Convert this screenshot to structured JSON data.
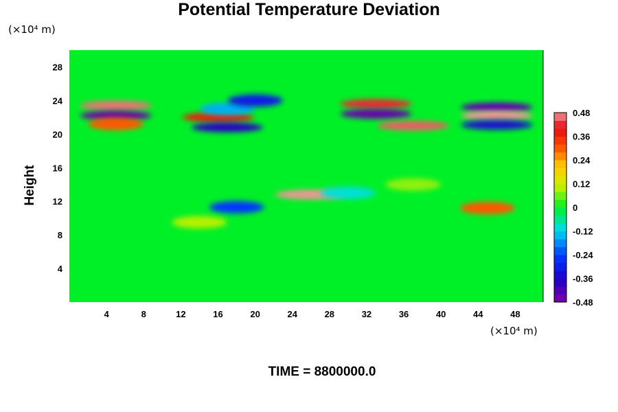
{
  "chart_data": {
    "type": "heatmap",
    "title": "Potential Temperature Deviation",
    "ylabel": "Height",
    "y_unit_label": "(×10⁴ m)",
    "x_unit_label": "(×10⁴ m)",
    "footer": "TIME = 8800000.0",
    "xlim": [
      0,
      51
    ],
    "ylim": [
      0,
      30
    ],
    "x_ticks": [
      4,
      8,
      12,
      16,
      20,
      24,
      28,
      32,
      36,
      40,
      44,
      48
    ],
    "y_ticks": [
      4,
      8,
      12,
      16,
      20,
      24,
      28
    ],
    "colorbar": {
      "range": [
        -0.48,
        0.48
      ],
      "levels": 24,
      "ticks": [
        0.48,
        0.36,
        0.24,
        0.12,
        0,
        -0.12,
        -0.24,
        -0.36,
        -0.48
      ],
      "tick_labels": [
        "0.48",
        "0.36",
        "0.24",
        "0.12",
        "0",
        "-0.12",
        "-0.24",
        "-0.36",
        "-0.48"
      ]
    },
    "features": [
      {
        "x": 5,
        "y": 23.4,
        "value": 0.46
      },
      {
        "x": 5,
        "y": 22.2,
        "value": -0.46
      },
      {
        "x": 5,
        "y": 21.2,
        "value": 0.3
      },
      {
        "x": 16,
        "y": 22.0,
        "value": 0.38
      },
      {
        "x": 17,
        "y": 23.0,
        "value": -0.15
      },
      {
        "x": 17,
        "y": 20.8,
        "value": -0.38
      },
      {
        "x": 20,
        "y": 24.0,
        "value": -0.3
      },
      {
        "x": 33,
        "y": 23.6,
        "value": 0.42
      },
      {
        "x": 33,
        "y": 22.4,
        "value": -0.45
      },
      {
        "x": 37,
        "y": 21.0,
        "value": 0.45
      },
      {
        "x": 46,
        "y": 23.2,
        "value": -0.44
      },
      {
        "x": 46,
        "y": 22.2,
        "value": 0.48
      },
      {
        "x": 46,
        "y": 21.1,
        "value": -0.35
      },
      {
        "x": 26,
        "y": 12.8,
        "value": 0.48
      },
      {
        "x": 18,
        "y": 11.3,
        "value": -0.25
      },
      {
        "x": 45,
        "y": 11.2,
        "value": 0.3
      },
      {
        "x": 14,
        "y": 9.5,
        "value": 0.1
      },
      {
        "x": 37,
        "y": 14.0,
        "value": 0.08
      },
      {
        "x": 30,
        "y": 13.0,
        "value": -0.1
      }
    ]
  }
}
